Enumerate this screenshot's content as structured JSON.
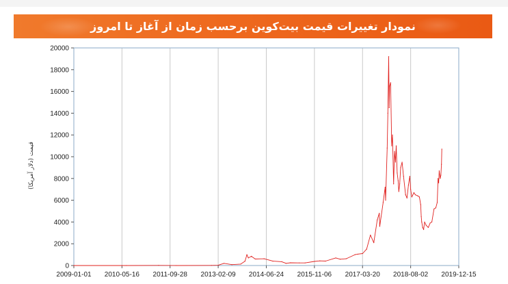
{
  "banner": {
    "title": "نمودار تغییرات قیمت بیت‌کوین برحسب زمان از آغاز تا امروز"
  },
  "chart_data": {
    "type": "line",
    "title": "نمودار تغییرات قیمت بیت‌کوین برحسب زمان از آغاز تا امروز",
    "ylabel": "قیمت (دلار آمریکا)",
    "xlabel": "",
    "xlim": [
      "2009-01-01",
      "2019-12-15"
    ],
    "ylim": [
      0,
      20000
    ],
    "x_ticks": [
      "2009-01-01",
      "2010-05-16",
      "2011-09-28",
      "2013-02-09",
      "2014-06-24",
      "2015-11-06",
      "2017-03-20",
      "2018-08-02",
      "2019-12-15"
    ],
    "y_ticks": [
      0,
      2000,
      4000,
      6000,
      8000,
      10000,
      12000,
      14000,
      16000,
      18000,
      20000
    ],
    "grid": "vertical",
    "line_color": "#e0201e",
    "series": [
      {
        "x": [
          "2009-01-01",
          "2010-07-01",
          "2011-06-01",
          "2011-12-01",
          "2012-12-01",
          "2013-02-09",
          "2013-04-10",
          "2013-07-01",
          "2013-10-01",
          "2013-11-15",
          "2013-12-04",
          "2013-12-20",
          "2014-01-20",
          "2014-03-01",
          "2014-06-01",
          "2014-09-01",
          "2014-12-01",
          "2015-01-15",
          "2015-03-01",
          "2015-06-01",
          "2015-08-01",
          "2015-11-06",
          "2016-01-01",
          "2016-03-01",
          "2016-06-15",
          "2016-08-01",
          "2016-10-01",
          "2017-01-01",
          "2017-02-01",
          "2017-03-20",
          "2017-05-01",
          "2017-06-10",
          "2017-07-15",
          "2017-08-20",
          "2017-09-10",
          "2017-09-15",
          "2017-10-20",
          "2017-11-10",
          "2017-11-15",
          "2017-12-01",
          "2017-12-08",
          "2017-12-17",
          "2017-12-22",
          "2017-12-26",
          "2018-01-06",
          "2018-01-17",
          "2018-01-25",
          "2018-02-06",
          "2018-02-15",
          "2018-02-25",
          "2018-03-05",
          "2018-03-15",
          "2018-03-25",
          "2018-04-01",
          "2018-04-10",
          "2018-04-20",
          "2018-05-05",
          "2018-05-20",
          "2018-06-10",
          "2018-06-25",
          "2018-07-10",
          "2018-07-24",
          "2018-08-02",
          "2018-08-14",
          "2018-09-05",
          "2018-09-20",
          "2018-10-15",
          "2018-11-01",
          "2018-11-14",
          "2018-11-20",
          "2018-11-25",
          "2018-12-05",
          "2018-12-15",
          "2018-12-25",
          "2019-01-10",
          "2019-02-01",
          "2019-02-20",
          "2019-03-10",
          "2019-04-02",
          "2019-04-20",
          "2019-05-05",
          "2019-05-14",
          "2019-05-20",
          "2019-05-26",
          "2019-06-05",
          "2019-06-12",
          "2019-06-18",
          "2019-06-22"
        ],
        "values": [
          0,
          0,
          15,
          3,
          13,
          25,
          200,
          80,
          130,
          400,
          1000,
          700,
          850,
          600,
          620,
          400,
          350,
          200,
          250,
          240,
          240,
          380,
          430,
          410,
          700,
          580,
          620,
          1000,
          1050,
          1100,
          1500,
          2800,
          2100,
          4200,
          4800,
          3600,
          5800,
          7200,
          6000,
          10800,
          14000,
          19200,
          14500,
          16500,
          16800,
          11000,
          12000,
          7500,
          10500,
          9500,
          11000,
          8500,
          7800,
          6800,
          7500,
          9000,
          9500,
          8200,
          6500,
          6200,
          7400,
          8200,
          7000,
          6300,
          6700,
          6500,
          6400,
          6300,
          5600,
          4500,
          4000,
          3500,
          3300,
          4000,
          3700,
          3500,
          3900,
          4000,
          5200,
          5300,
          5800,
          8000,
          7600,
          8700,
          8000,
          8300,
          9300,
          10700
        ]
      }
    ]
  }
}
